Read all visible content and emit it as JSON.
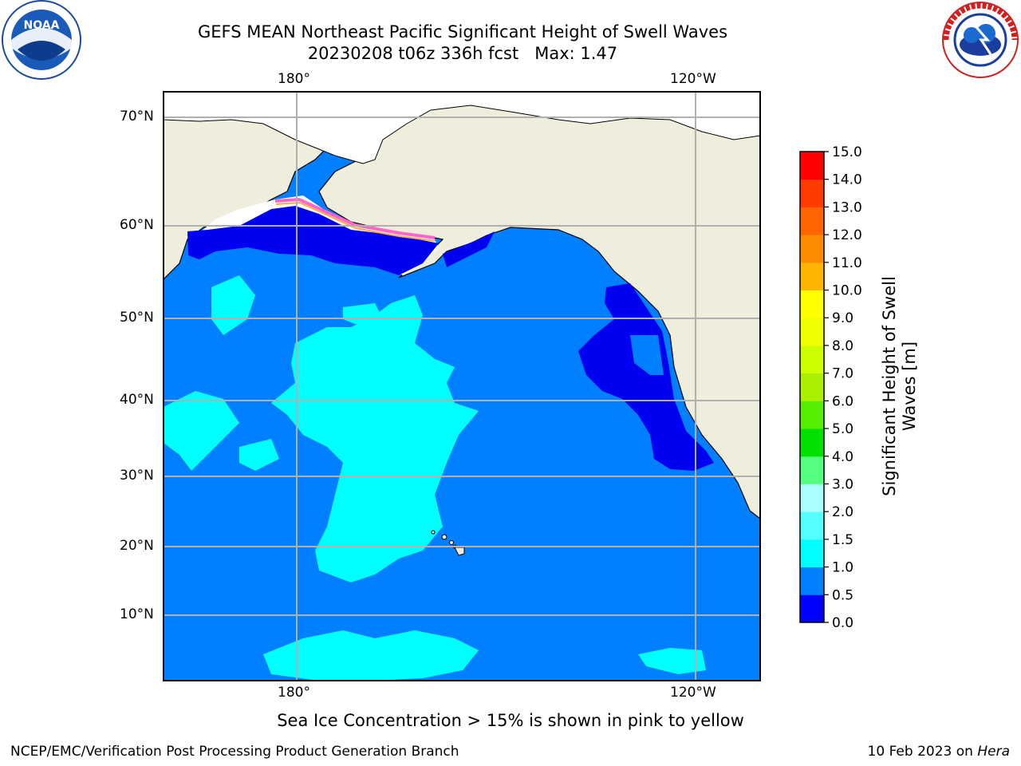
{
  "header": {
    "title_line1": "GEFS MEAN Northeast Pacific Significant Height of Swell Waves",
    "title_line2": "20230208 t06z 336h fcst   Max: 1.47"
  },
  "logos": {
    "left": {
      "text": "NOAA",
      "icon": "noaa-logo"
    },
    "right": {
      "text": "NATIONAL WEATHER SERVICE",
      "icon": "nws-logo"
    }
  },
  "map": {
    "top_lon_labels": [
      "180°",
      "120°W"
    ],
    "bottom_lon_labels": [
      "180°",
      "120°W"
    ],
    "lat_labels": [
      "70°N",
      "60°N",
      "50°N",
      "40°N",
      "30°N",
      "20°N",
      "10°N"
    ],
    "colors": {
      "land": "#efeedc",
      "ocean": "#0080ff",
      "low_swell": "#0000f0",
      "mid_swell": "#00ffff",
      "grid": "#b0b0b0"
    }
  },
  "colorbar": {
    "label_line1": "Significant Height of Swell",
    "label_line2": "Waves [m]",
    "ticks": [
      "0.0",
      "0.5",
      "1.0",
      "1.5",
      "2.0",
      "3.0",
      "4.0",
      "5.0",
      "6.0",
      "7.0",
      "8.0",
      "9.0",
      "10.0",
      "11.0",
      "12.0",
      "13.0",
      "14.0",
      "15.0"
    ],
    "colors": [
      "#0000ff",
      "#0080ff",
      "#00ffff",
      "#55ffff",
      "#aaffff",
      "#55ff80",
      "#00e000",
      "#55ee00",
      "#aaee00",
      "#ccff00",
      "#eeff00",
      "#ffff00",
      "#ffb400",
      "#ff8c00",
      "#ff6400",
      "#ff3c00",
      "#ff0000"
    ]
  },
  "note": "Sea Ice Concentration > 15% is shown in pink to yellow",
  "footer": {
    "left": "NCEP/EMC/Verification Post Processing Product Generation Branch",
    "right_date": "10 Feb 2023 on ",
    "right_host": "Hera"
  }
}
